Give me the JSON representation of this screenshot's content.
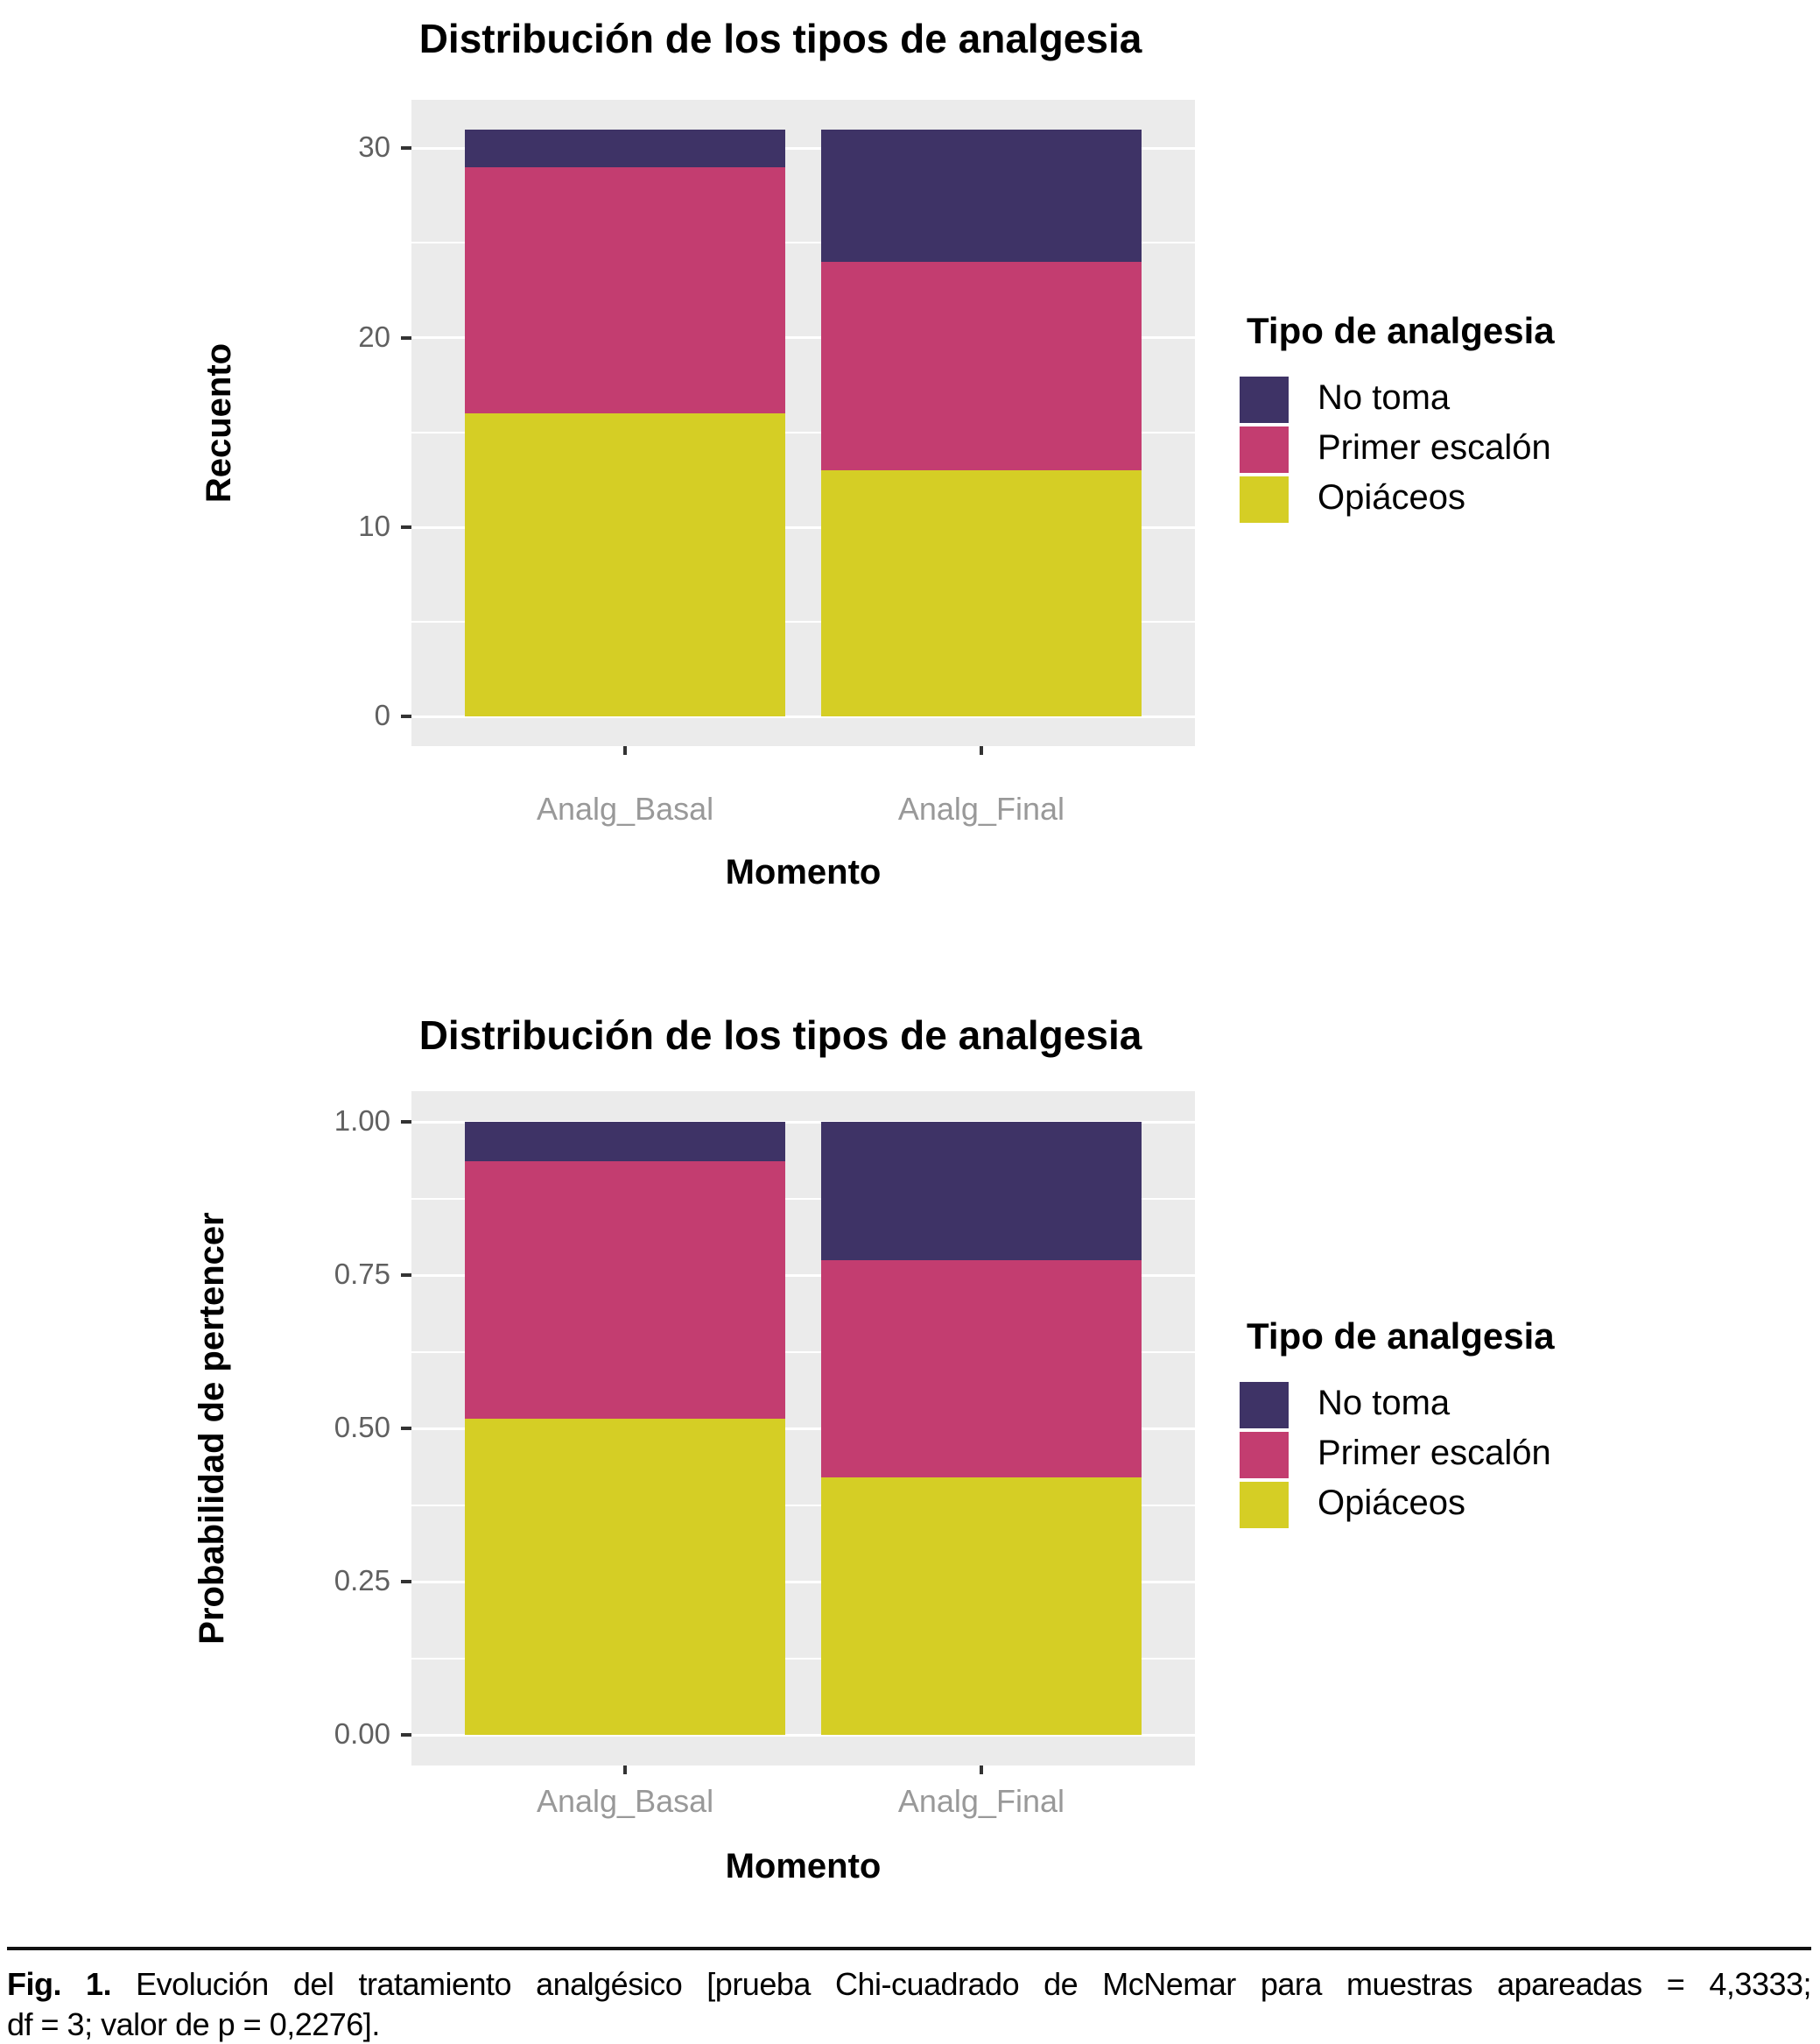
{
  "page": {
    "background": "#FFFFFF"
  },
  "palette": {
    "no_toma": "#3E3366",
    "primer_escalon": "#C33D70",
    "opiaceos": "#D5CE25",
    "panel_bg": "#EBEBEB",
    "gridline": "#FFFFFF",
    "axis_tick": "#333333",
    "y_tick_text": "#606060",
    "x_tick_text": "#999999",
    "title_text": "#000000"
  },
  "legend": {
    "title": "Tipo de analgesia",
    "items": [
      {
        "label": "No toma",
        "color_key": "no_toma"
      },
      {
        "label": "Primer escalón",
        "color_key": "primer_escalon"
      },
      {
        "label": "Opiáceos",
        "color_key": "opiaceos"
      }
    ]
  },
  "chart_data": [
    {
      "type": "bar",
      "stacked": true,
      "title": "Distribución de los tipos de analgesia",
      "xlabel": "Momento",
      "ylabel": "Recuento",
      "categories": [
        "Analg_Basal",
        "Analg_Final"
      ],
      "series": [
        {
          "name": "Opiáceos",
          "color_key": "opiaceos",
          "values": [
            16,
            13
          ]
        },
        {
          "name": "Primer escalón",
          "color_key": "primer_escalon",
          "values": [
            13,
            11
          ]
        },
        {
          "name": "No toma",
          "color_key": "no_toma",
          "values": [
            2,
            7
          ]
        }
      ],
      "totals": [
        31,
        31
      ],
      "y_ticks": [
        0,
        10,
        20,
        30
      ],
      "y_tick_labels": [
        "0",
        "10",
        "20",
        "30"
      ],
      "y_minor": [
        5,
        15,
        25
      ],
      "ylim": [
        -1.55,
        32.55
      ],
      "grid": true,
      "legend_position": "right"
    },
    {
      "type": "bar",
      "stacked": true,
      "normalized": true,
      "title": "Distribución de los tipos de analgesia",
      "xlabel": "Momento",
      "ylabel": "Probabilidad de pertencer",
      "categories": [
        "Analg_Basal",
        "Analg_Final"
      ],
      "series": [
        {
          "name": "Opiáceos",
          "color_key": "opiaceos",
          "values": [
            0.5161,
            0.4194
          ]
        },
        {
          "name": "Primer escalón",
          "color_key": "primer_escalon",
          "values": [
            0.4194,
            0.3548
          ]
        },
        {
          "name": "No toma",
          "color_key": "no_toma",
          "values": [
            0.0645,
            0.2258
          ]
        }
      ],
      "y_ticks": [
        0,
        0.25,
        0.5,
        0.75,
        1
      ],
      "y_tick_labels": [
        "0.00",
        "0.25",
        "0.50",
        "0.75",
        "1.00"
      ],
      "y_minor": [
        0.125,
        0.375,
        0.625,
        0.875
      ],
      "ylim": [
        -0.05,
        1.05
      ],
      "grid": true,
      "legend_position": "right"
    }
  ],
  "caption": {
    "label": "Fig. 1.",
    "line1_rest": " Evolución del tratamiento analgésico [prueba Chi-cuadrado de McNemar para muestras apareadas = 4,3333;",
    "line2": "df = 3; valor de p = 0,2276]."
  }
}
